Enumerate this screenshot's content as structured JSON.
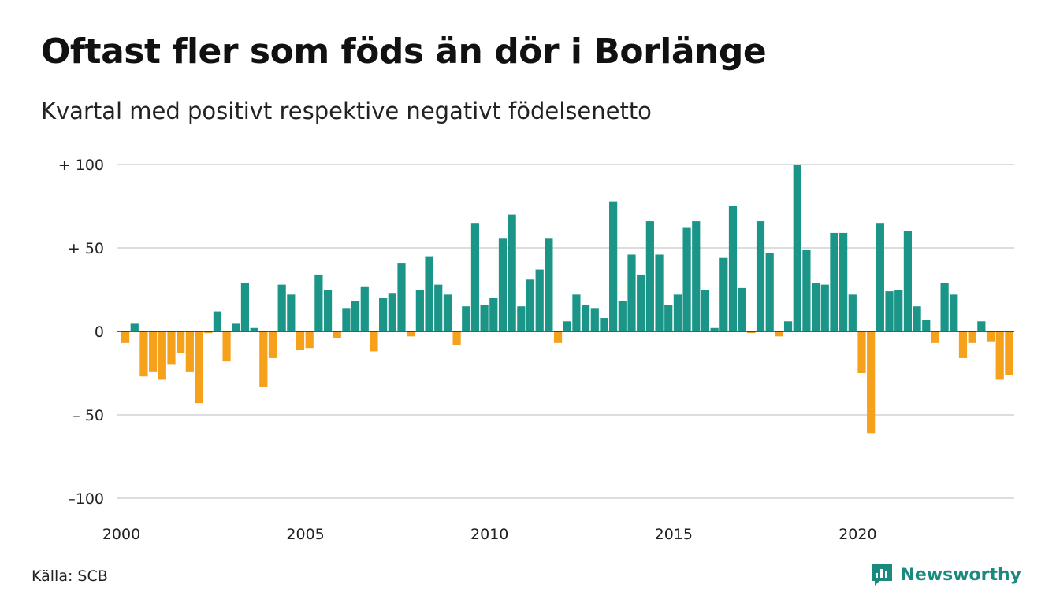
{
  "title": "Oftast fler som föds än dör i Borlänge",
  "subtitle": "Kvartal med positivt respektive negativt födelsenetto",
  "source": "Källa: SCB",
  "brand": {
    "name": "Newsworthy",
    "icon": "newsworthy-logo-icon",
    "color": "#1a8a80"
  },
  "colors": {
    "positive": "#1a9587",
    "negative": "#f5a11c",
    "grid": "#dddddd",
    "zero_line": "#222222"
  },
  "chart_data": {
    "type": "bar",
    "title": "Oftast fler som föds än dör i Borlänge",
    "subtitle": "Kvartal med positivt respektive negativt födelsenetto",
    "xlabel": "",
    "ylabel": "",
    "ylim": [
      -100,
      100
    ],
    "y_ticks": [
      {
        "value": 100,
        "label": "+ 100"
      },
      {
        "value": 50,
        "label": "+  50"
      },
      {
        "value": 0,
        "label": "0"
      },
      {
        "value": -50,
        "label": "– 50"
      },
      {
        "value": -100,
        "label": "–100"
      }
    ],
    "x_ticks": [
      "2000",
      "2005",
      "2010",
      "2015",
      "2020"
    ],
    "grid": true,
    "legend": "none",
    "start_quarter": "2000 Q1",
    "values": [
      -7,
      5,
      -27,
      -24,
      -29,
      -20,
      -13,
      -24,
      -43,
      -1,
      12,
      -18,
      5,
      29,
      2,
      -33,
      -16,
      28,
      22,
      -11,
      -10,
      34,
      25,
      -4,
      14,
      18,
      27,
      -12,
      20,
      23,
      41,
      -3,
      25,
      45,
      28,
      22,
      -8,
      15,
      65,
      16,
      20,
      56,
      70,
      15,
      31,
      37,
      56,
      -7,
      6,
      22,
      16,
      14,
      8,
      78,
      18,
      46,
      34,
      66,
      46,
      16,
      22,
      62,
      66,
      25,
      2,
      44,
      75,
      26,
      -1,
      66,
      47,
      -3,
      6,
      100,
      49,
      29,
      28,
      59,
      59,
      22,
      -25,
      -61,
      65,
      24,
      25,
      60,
      15,
      7,
      -7,
      29,
      22,
      -16,
      -7,
      6,
      -6,
      -29,
      -26
    ]
  }
}
